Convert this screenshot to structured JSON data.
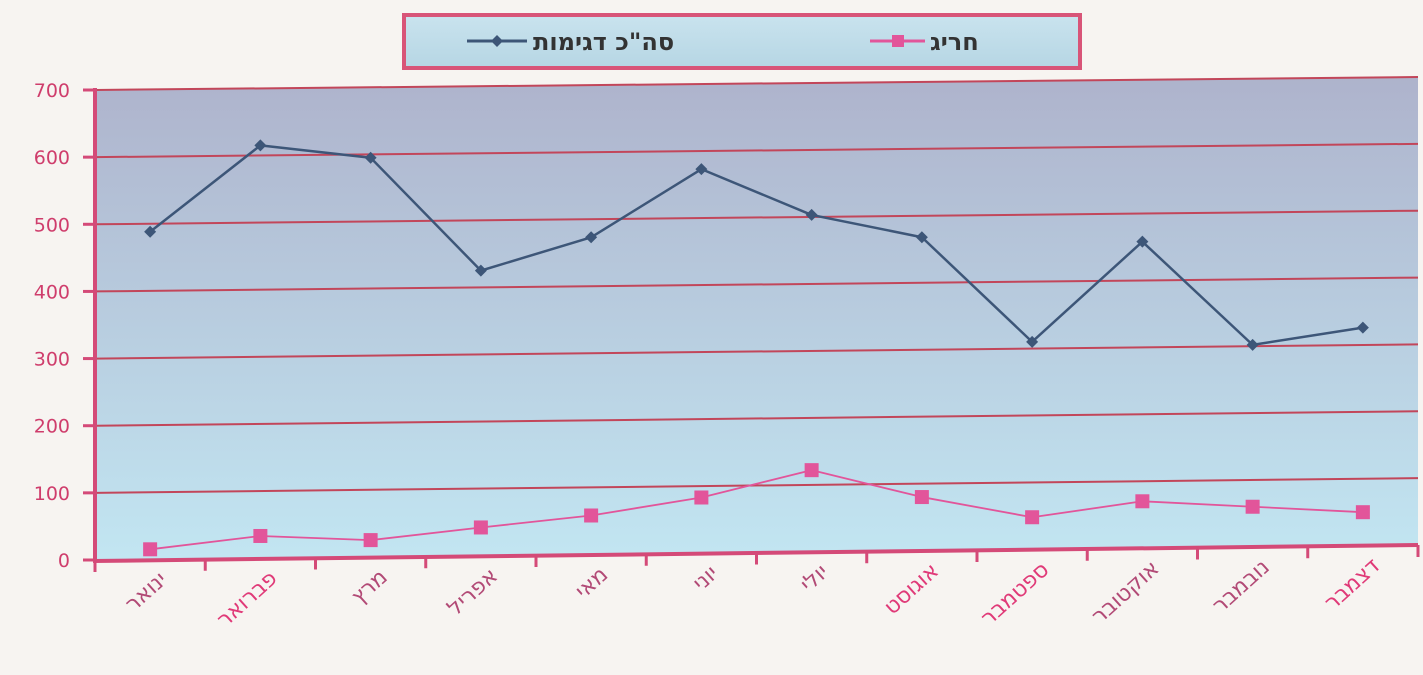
{
  "chart_data": {
    "type": "line",
    "categories": [
      "ינואר",
      "פברואר",
      "מרץ",
      "אפריל",
      "מאי",
      "יוני",
      "יולי",
      "אוגוסט",
      "ספטמבר",
      "אוקטובר",
      "נובמבר",
      "דצמבר"
    ],
    "series": [
      {
        "name": "סה\"כ דגימות",
        "values": [
          488,
          615,
          595,
          425,
          473,
          573,
          503,
          468,
          310,
          458,
          302,
          326
        ],
        "color": "#3d5678",
        "marker": "diamond"
      },
      {
        "name": "חריג",
        "values": [
          15,
          33,
          25,
          42,
          58,
          83,
          122,
          80,
          48,
          70,
          60,
          50
        ],
        "color": "#e2559a",
        "marker": "square"
      }
    ],
    "y_ticks": [
      "0",
      "100",
      "200",
      "300",
      "400",
      "500",
      "600",
      "700"
    ],
    "ylim": [
      0,
      700
    ],
    "grid": true,
    "legend_position": "top",
    "colors": {
      "axis": "#d44a78",
      "gridline": "#c2465a",
      "plot_top": "#aeb3cc",
      "plot_bottom": "#c2e6f2",
      "tick_label": "#cf3d6c",
      "category_label_default": "#b24a76",
      "category_label_accent": "#e03a78"
    }
  }
}
